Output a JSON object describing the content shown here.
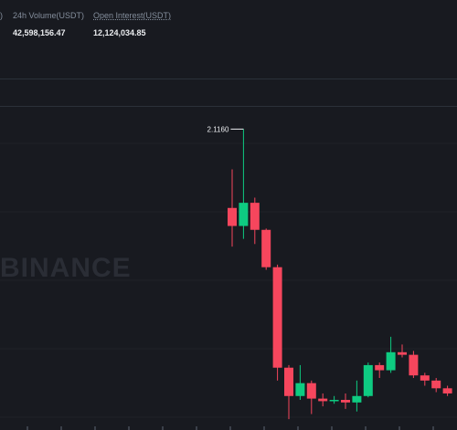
{
  "stats": {
    "volume_label": "24h Volume(USDT)",
    "volume_value": "42,598,156.47",
    "open_interest_label": "Open Interest(USDT)",
    "open_interest_value": "12,124,034.85"
  },
  "chart": {
    "watermark": "BINANCE",
    "high_price_label": "2.1160",
    "up_color": "#0ecb81",
    "down_color": "#f6465d"
  },
  "chart_data": {
    "type": "candlestick",
    "candles": [
      {
        "open": 1.81,
        "close": 1.74,
        "high": 1.96,
        "low": 1.66
      },
      {
        "open": 1.74,
        "close": 1.83,
        "high": 2.116,
        "low": 1.69
      },
      {
        "open": 1.83,
        "close": 1.725,
        "high": 1.85,
        "low": 1.67
      },
      {
        "open": 1.725,
        "close": 1.58,
        "high": 1.73,
        "low": 1.57
      },
      {
        "open": 1.58,
        "close": 1.19,
        "high": 1.59,
        "low": 1.14
      },
      {
        "open": 1.19,
        "close": 1.08,
        "high": 1.2,
        "low": 0.99
      },
      {
        "open": 1.08,
        "close": 1.13,
        "high": 1.2,
        "low": 1.065
      },
      {
        "open": 1.13,
        "close": 1.07,
        "high": 1.14,
        "low": 1.01
      },
      {
        "open": 1.07,
        "close": 1.06,
        "high": 1.09,
        "low": 1.04
      },
      {
        "open": 1.06,
        "close": 1.065,
        "high": 1.08,
        "low": 1.05
      },
      {
        "open": 1.065,
        "close": 1.055,
        "high": 1.09,
        "low": 1.03
      },
      {
        "open": 1.055,
        "close": 1.08,
        "high": 1.14,
        "low": 1.02
      },
      {
        "open": 1.08,
        "close": 1.2,
        "high": 1.21,
        "low": 1.075
      },
      {
        "open": 1.2,
        "close": 1.18,
        "high": 1.21,
        "low": 1.15
      },
      {
        "open": 1.18,
        "close": 1.25,
        "high": 1.31,
        "low": 1.17
      },
      {
        "open": 1.25,
        "close": 1.24,
        "high": 1.28,
        "low": 1.23
      },
      {
        "open": 1.24,
        "close": 1.16,
        "high": 1.255,
        "low": 1.15
      },
      {
        "open": 1.16,
        "close": 1.14,
        "high": 1.17,
        "low": 1.12
      },
      {
        "open": 1.14,
        "close": 1.11,
        "high": 1.15,
        "low": 1.095
      },
      {
        "open": 1.11,
        "close": 1.09,
        "high": 1.12,
        "low": 1.08
      }
    ],
    "price_range": [
      0.98,
      2.16
    ]
  }
}
